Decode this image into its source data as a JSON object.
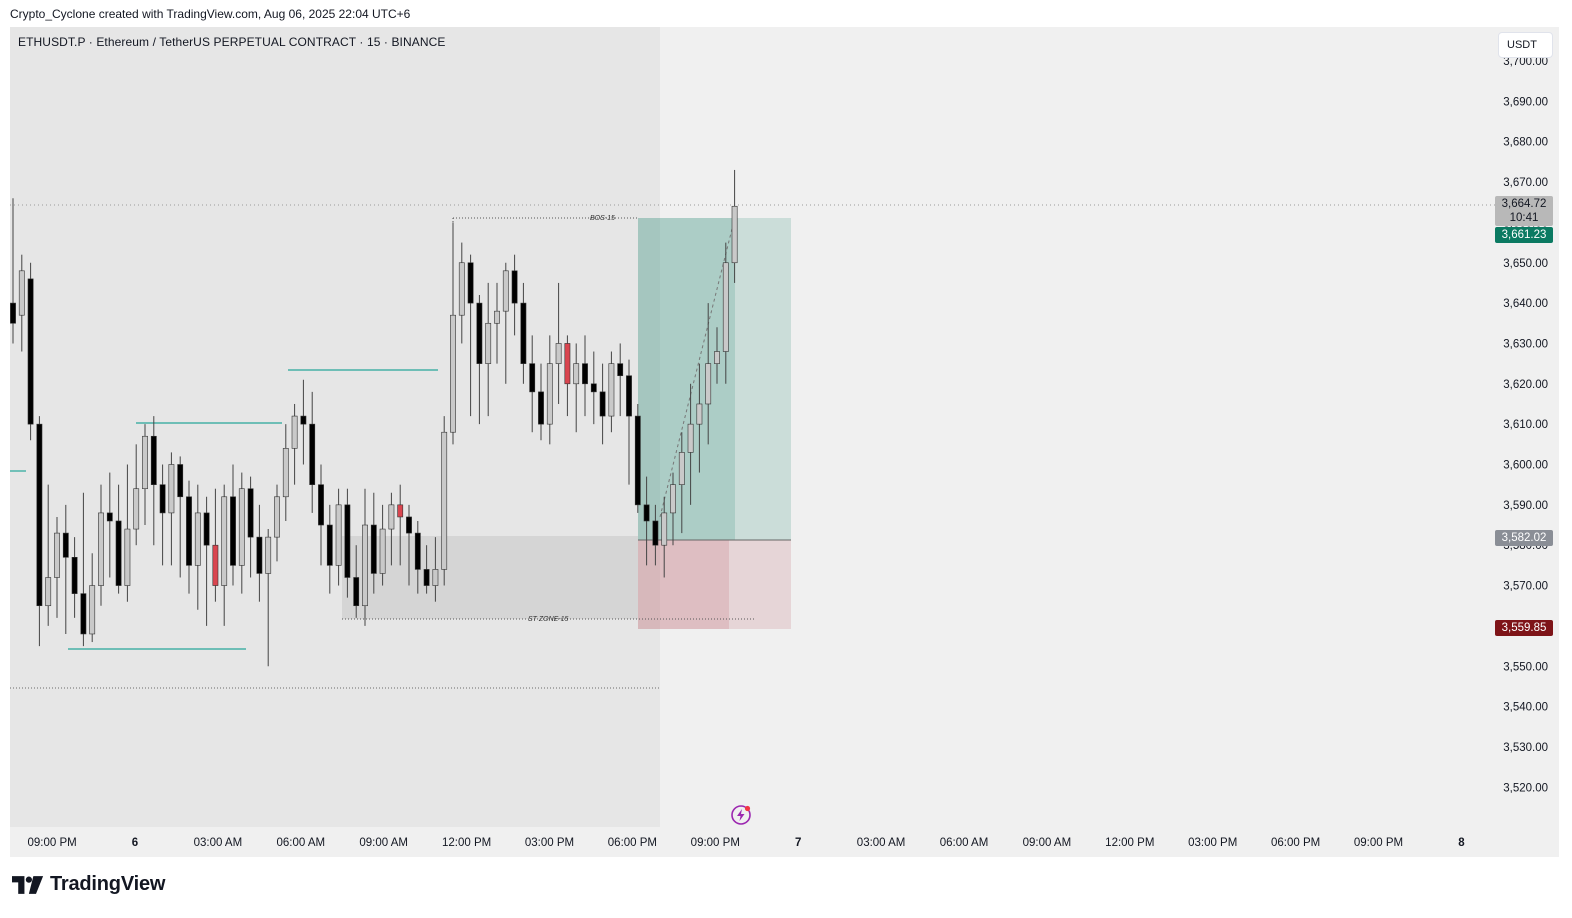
{
  "credit": "Crypto_Cyclone created with TradingView.com, Aug 06, 2025 22:04 UTC+6",
  "symbol_line": "ETHUSDT.P · Ethereum / TetherUS PERPETUAL CONTRACT · 15 · BINANCE",
  "currency": "USDT",
  "brand": "TradingView",
  "price_axis": {
    "ticks": [
      "3,700.00",
      "3,690.00",
      "3,680.00",
      "3,670.00",
      "3,660.00",
      "3,650.00",
      "3,640.00",
      "3,630.00",
      "3,620.00",
      "3,610.00",
      "3,600.00",
      "3,590.00",
      "3,580.00",
      "3,570.00",
      "3,560.00",
      "3,550.00",
      "3,540.00",
      "3,530.00",
      "3,520.00"
    ]
  },
  "time_axis": {
    "ticks": [
      "09:00 PM",
      "6",
      "03:00 AM",
      "06:00 AM",
      "09:00 AM",
      "12:00 PM",
      "03:00 PM",
      "06:00 PM",
      "09:00 PM",
      "7",
      "03:00 AM",
      "06:00 AM",
      "09:00 AM",
      "12:00 PM",
      "03:00 PM",
      "06:00 PM",
      "09:00 PM",
      "8"
    ]
  },
  "price_tags": {
    "last_price": "3,664.72",
    "countdown": "10:41",
    "take_profit": "3,661.23",
    "entry": "3,582.02",
    "stop_loss": "3,559.85"
  },
  "annotations": {
    "bos_label": "BOS-15",
    "zone_label": "ST ZONE-15"
  },
  "colors": {
    "up_candle": "#c9c9c9",
    "down_candle": "#000000",
    "highlight_down": "#d9454f",
    "profit_zone": "#0b7a62",
    "loss_zone": "#7e1418",
    "swing_lines": "#26a69a"
  },
  "chart_data": {
    "type": "candlestick",
    "symbol": "ETHUSDT.P",
    "interval": "15",
    "ylim": [
      3515,
      3705
    ],
    "candles": [
      [
        3640,
        3635,
        3666,
        3630
      ],
      [
        3637,
        3648,
        3652,
        3628
      ],
      [
        3646,
        3610,
        3650,
        3606
      ],
      [
        3610,
        3565,
        3612,
        3555
      ],
      [
        3565,
        3572,
        3595,
        3560
      ],
      [
        3572,
        3583,
        3587,
        3562
      ],
      [
        3583,
        3577,
        3590,
        3558
      ],
      [
        3577,
        3568,
        3582,
        3562
      ],
      [
        3568,
        3558,
        3593,
        3555
      ],
      [
        3558,
        3570,
        3578,
        3556
      ],
      [
        3570,
        3588,
        3595,
        3565
      ],
      [
        3588,
        3586,
        3598,
        3572
      ],
      [
        3586,
        3570,
        3595,
        3568
      ],
      [
        3570,
        3584,
        3600,
        3566
      ],
      [
        3584,
        3594,
        3605,
        3580
      ],
      [
        3594,
        3607,
        3610,
        3585
      ],
      [
        3607,
        3595,
        3612,
        3580
      ],
      [
        3595,
        3588,
        3600,
        3575
      ],
      [
        3588,
        3600,
        3603,
        3575
      ],
      [
        3600,
        3592,
        3602,
        3572
      ],
      [
        3592,
        3575,
        3596,
        3568
      ],
      [
        3575,
        3588,
        3595,
        3564
      ],
      [
        3588,
        3580,
        3592,
        3560
      ],
      [
        3580,
        3570,
        3594,
        3566
      ],
      [
        3570,
        3592,
        3595,
        3560
      ],
      [
        3592,
        3575,
        3600,
        3570
      ],
      [
        3575,
        3594,
        3598,
        3568
      ],
      [
        3594,
        3582,
        3597,
        3572
      ],
      [
        3582,
        3573,
        3590,
        3566
      ],
      [
        3573,
        3582,
        3584,
        3550
      ],
      [
        3582,
        3592,
        3595,
        3576
      ],
      [
        3592,
        3604,
        3610,
        3586
      ],
      [
        3604,
        3612,
        3615,
        3595
      ],
      [
        3612,
        3610,
        3621,
        3600
      ],
      [
        3610,
        3595,
        3618,
        3588
      ],
      [
        3595,
        3585,
        3600,
        3575
      ],
      [
        3585,
        3575,
        3590,
        3568
      ],
      [
        3575,
        3590,
        3594,
        3570
      ],
      [
        3590,
        3572,
        3594,
        3567
      ],
      [
        3572,
        3565,
        3580,
        3562
      ],
      [
        3565,
        3585,
        3594,
        3560
      ],
      [
        3585,
        3573,
        3593,
        3568
      ],
      [
        3573,
        3584,
        3590,
        3570
      ],
      [
        3584,
        3590,
        3593,
        3575
      ],
      [
        3590,
        3587,
        3595,
        3575
      ],
      [
        3587,
        3583,
        3590,
        3570
      ],
      [
        3583,
        3574,
        3586,
        3568
      ],
      [
        3574,
        3570,
        3580,
        3568
      ],
      [
        3570,
        3574,
        3582,
        3566
      ],
      [
        3574,
        3608,
        3612,
        3570
      ],
      [
        3608,
        3637,
        3660,
        3605
      ],
      [
        3637,
        3650,
        3655,
        3630
      ],
      [
        3650,
        3640,
        3652,
        3612
      ],
      [
        3640,
        3625,
        3642,
        3610
      ],
      [
        3625,
        3635,
        3645,
        3612
      ],
      [
        3635,
        3638,
        3645,
        3625
      ],
      [
        3638,
        3648,
        3650,
        3620
      ],
      [
        3648,
        3640,
        3652,
        3632
      ],
      [
        3640,
        3625,
        3645,
        3620
      ],
      [
        3625,
        3618,
        3632,
        3608
      ],
      [
        3618,
        3610,
        3625,
        3606
      ],
      [
        3610,
        3625,
        3632,
        3605
      ],
      [
        3625,
        3630,
        3645,
        3615
      ],
      [
        3630,
        3620,
        3632,
        3612
      ],
      [
        3620,
        3625,
        3630,
        3608
      ],
      [
        3625,
        3620,
        3632,
        3612
      ],
      [
        3620,
        3618,
        3628,
        3610
      ],
      [
        3618,
        3612,
        3625,
        3605
      ],
      [
        3612,
        3625,
        3628,
        3608
      ],
      [
        3625,
        3622,
        3630,
        3612
      ],
      [
        3622,
        3612,
        3626,
        3595
      ],
      [
        3612,
        3590,
        3615,
        3588
      ],
      [
        3590,
        3586,
        3597,
        3575
      ],
      [
        3586,
        3580,
        3590,
        3575
      ],
      [
        3580,
        3588,
        3592,
        3572
      ],
      [
        3588,
        3595,
        3598,
        3580
      ],
      [
        3595,
        3603,
        3608,
        3583
      ],
      [
        3603,
        3610,
        3620,
        3590
      ],
      [
        3610,
        3615,
        3625,
        3598
      ],
      [
        3615,
        3625,
        3640,
        3605
      ],
      [
        3625,
        3628,
        3634,
        3620
      ],
      [
        3628,
        3650,
        3655,
        3620
      ],
      [
        3650,
        3664,
        3673,
        3645
      ]
    ]
  }
}
